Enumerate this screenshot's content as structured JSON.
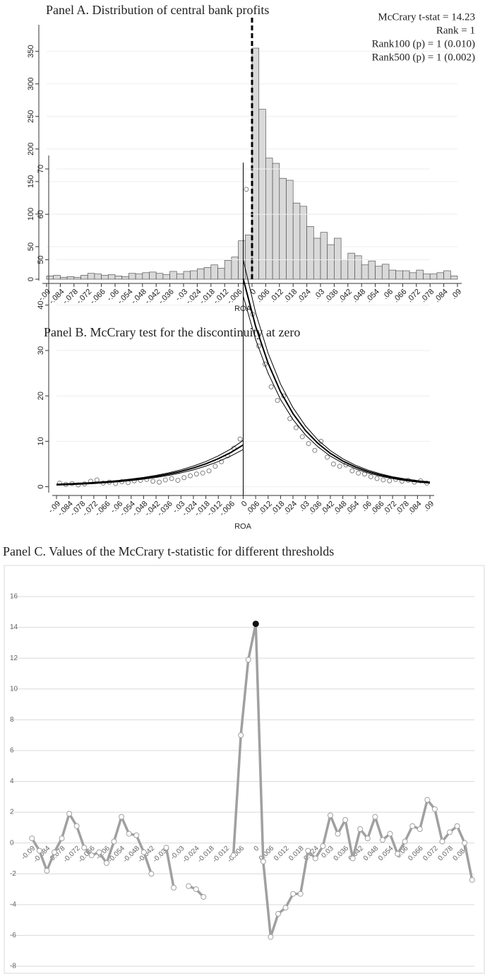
{
  "chart_data": [
    {
      "type": "histogram",
      "title": "Panel A. Distribution of central bank profits",
      "x_label": "ROA",
      "annotations": [
        "McCrary t-stat = 14.23",
        "Rank = 1",
        "Rank100 (p) = 1 (0.010)",
        "Rank500 (p) = 1 (0.002)"
      ],
      "bins": [
        -0.09,
        -0.087,
        -0.084,
        -0.081,
        -0.078,
        -0.075,
        -0.072,
        -0.069,
        -0.066,
        -0.063,
        -0.06,
        -0.057,
        -0.054,
        -0.051,
        -0.048,
        -0.045,
        -0.042,
        -0.039,
        -0.036,
        -0.033,
        -0.03,
        -0.027,
        -0.024,
        -0.021,
        -0.018,
        -0.015,
        -0.012,
        -0.009,
        -0.006,
        -0.003,
        0,
        0.003,
        0.006,
        0.009,
        0.012,
        0.015,
        0.018,
        0.021,
        0.024,
        0.027,
        0.03,
        0.033,
        0.036,
        0.039,
        0.042,
        0.045,
        0.048,
        0.051,
        0.054,
        0.057,
        0.06,
        0.063,
        0.066,
        0.069,
        0.072,
        0.075,
        0.078,
        0.081,
        0.084,
        0.087,
        0.09
      ],
      "values": [
        5,
        6,
        3,
        4,
        3,
        6,
        9,
        8,
        6,
        7,
        5,
        4,
        9,
        8,
        10,
        11,
        9,
        7,
        12,
        8,
        12,
        13,
        16,
        18,
        22,
        17,
        29,
        34,
        59,
        68,
        355,
        261,
        186,
        178,
        155,
        152,
        117,
        112,
        81,
        63,
        72,
        53,
        63,
        30,
        40,
        36,
        22,
        28,
        20,
        23,
        14,
        13,
        13,
        10,
        14,
        8,
        8,
        10,
        13,
        5
      ],
      "color": "#d9d9d9",
      "vline": 0,
      "xlim": [
        -0.09,
        0.09
      ],
      "ylim": [
        0,
        380
      ],
      "xticks": [
        {
          "value": -0.09,
          "label": "-.09"
        },
        {
          "value": -0.084,
          "label": "-.084"
        },
        {
          "value": -0.078,
          "label": "-.078"
        },
        {
          "value": -0.072,
          "label": "-.072"
        },
        {
          "value": -0.066,
          "label": "-.066"
        },
        {
          "value": -0.06,
          "label": "-.06"
        },
        {
          "value": -0.054,
          "label": "-.054"
        },
        {
          "value": -0.048,
          "label": "-.048"
        },
        {
          "value": -0.042,
          "label": "-.042"
        },
        {
          "value": -0.036,
          "label": "-.036"
        },
        {
          "value": -0.03,
          "label": "-.03"
        },
        {
          "value": -0.024,
          "label": "-.024"
        },
        {
          "value": -0.018,
          "label": "-.018"
        },
        {
          "value": -0.012,
          "label": "-.012"
        },
        {
          "value": -0.006,
          "label": "-.006"
        },
        0,
        {
          "value": 0.006,
          "label": ".006"
        },
        {
          "value": 0.012,
          "label": ".012"
        },
        {
          "value": 0.018,
          "label": ".018"
        },
        {
          "value": 0.024,
          "label": ".024"
        },
        {
          "value": 0.03,
          "label": ".03"
        },
        {
          "value": 0.036,
          "label": ".036"
        },
        {
          "value": 0.042,
          "label": ".042"
        },
        {
          "value": 0.048,
          "label": ".048"
        },
        {
          "value": 0.054,
          "label": ".054"
        },
        {
          "value": 0.06,
          "label": ".06"
        },
        {
          "value": 0.066,
          "label": ".066"
        },
        {
          "value": 0.072,
          "label": ".072"
        },
        {
          "value": 0.078,
          "label": ".078"
        },
        {
          "value": 0.084,
          "label": ".084"
        },
        {
          "value": 0.09,
          "label": ".09"
        }
      ],
      "yticks": [
        0,
        50,
        100,
        150,
        200,
        250,
        300,
        350
      ],
      "grid": true
    },
    {
      "type": "scatter",
      "title": "Panel B. McCrary test for the discontinuity at zero",
      "x_label": "ROA",
      "vline": 0,
      "xlim": [
        -0.09,
        0.09
      ],
      "ylim": [
        -1,
        71.4
      ],
      "xticks": [
        {
          "value": -0.09,
          "label": "-.09"
        },
        {
          "value": -0.084,
          "label": "-.084"
        },
        {
          "value": -0.078,
          "label": "-.078"
        },
        {
          "value": -0.072,
          "label": "-.072"
        },
        {
          "value": -0.066,
          "label": "-.066"
        },
        {
          "value": -0.06,
          "label": "-.06"
        },
        {
          "value": -0.054,
          "label": "-.054"
        },
        {
          "value": -0.048,
          "label": "-.048"
        },
        {
          "value": -0.042,
          "label": "-.042"
        },
        {
          "value": -0.036,
          "label": "-.036"
        },
        {
          "value": -0.03,
          "label": "-.03"
        },
        {
          "value": -0.024,
          "label": "-.024"
        },
        {
          "value": -0.018,
          "label": "-.018"
        },
        {
          "value": -0.012,
          "label": "-.012"
        },
        {
          "value": -0.006,
          "label": "-.006"
        },
        0,
        {
          "value": 0.006,
          "label": ".006"
        },
        {
          "value": 0.012,
          "label": ".012"
        },
        {
          "value": 0.018,
          "label": ".018"
        },
        {
          "value": 0.024,
          "label": ".024"
        },
        {
          "value": 0.03,
          "label": ".03"
        },
        {
          "value": 0.036,
          "label": ".036"
        },
        {
          "value": 0.042,
          "label": ".042"
        },
        {
          "value": 0.048,
          "label": ".048"
        },
        {
          "value": 0.054,
          "label": ".054"
        },
        {
          "value": 0.06,
          "label": ".06"
        },
        {
          "value": 0.066,
          "label": ".066"
        },
        {
          "value": 0.072,
          "label": ".072"
        },
        {
          "value": 0.078,
          "label": ".078"
        },
        {
          "value": 0.084,
          "label": ".084"
        },
        {
          "value": 0.09,
          "label": ".09"
        }
      ],
      "yticks": [
        0,
        10,
        20,
        30,
        40,
        50,
        60,
        70
      ],
      "grid": true,
      "series": [
        {
          "kind": "scatter",
          "color": "#808080",
          "x": [
            -0.0885,
            -0.0855,
            -0.0825,
            -0.0795,
            -0.0765,
            -0.0735,
            -0.0705,
            -0.0675,
            -0.0645,
            -0.0615,
            -0.0585,
            -0.0555,
            -0.0525,
            -0.0495,
            -0.0465,
            -0.0435,
            -0.0405,
            -0.0375,
            -0.0345,
            -0.0315,
            -0.0285,
            -0.0255,
            -0.0225,
            -0.0195,
            -0.0165,
            -0.0135,
            -0.0105,
            -0.0075,
            -0.0045,
            -0.0015,
            0.0015,
            0.0045,
            0.0075,
            0.0105,
            0.0135,
            0.0165,
            0.0195,
            0.0225,
            0.0255,
            0.0285,
            0.0315,
            0.0345,
            0.0375,
            0.0405,
            0.0435,
            0.0465,
            0.0495,
            0.0525,
            0.0555,
            0.0585,
            0.0615,
            0.0645,
            0.0675,
            0.0705,
            0.0735,
            0.0765,
            0.0795,
            0.0825,
            0.0855,
            0.0885
          ],
          "values": [
            0.8,
            0.5,
            0.7,
            0.4,
            0.6,
            1.2,
            1.5,
            0.8,
            1.0,
            0.7,
            1.1,
            0.9,
            1.3,
            1.4,
            1.6,
            1.2,
            1.0,
            1.5,
            1.8,
            1.4,
            2.0,
            2.4,
            2.8,
            3.0,
            3.5,
            4.5,
            5.5,
            6.8,
            8.5,
            10.5,
            65.5,
            38,
            31,
            27,
            22,
            19,
            20,
            15,
            13,
            11,
            9.5,
            8,
            10,
            6.5,
            5,
            4.5,
            4.8,
            3.5,
            3,
            2.8,
            2.2,
            1.8,
            1.5,
            1.3,
            1.6,
            1.2,
            1.4,
            1.0,
            1.3,
            0.8
          ]
        },
        {
          "kind": "line",
          "color": "#000000",
          "width": 2,
          "x": [
            -0.09,
            -0.084,
            -0.078,
            -0.072,
            -0.066,
            -0.06,
            -0.054,
            -0.048,
            -0.042,
            -0.036,
            -0.03,
            -0.024,
            -0.018,
            -0.012,
            -0.006,
            0
          ],
          "values": [
            0.46,
            0.56,
            0.68,
            0.83,
            1.02,
            1.24,
            1.52,
            1.86,
            2.27,
            2.77,
            3.38,
            4.13,
            5.05,
            6.17,
            7.53,
            9.2
          ]
        },
        {
          "kind": "line",
          "color": "#000000",
          "width": 1,
          "x": [
            -0.09,
            -0.084,
            -0.078,
            -0.072,
            -0.066,
            -0.06,
            -0.054,
            -0.048,
            -0.042,
            -0.036,
            -0.03,
            -0.024,
            -0.018,
            -0.012,
            -0.006,
            0
          ],
          "values": [
            0.6,
            0.7,
            0.82,
            0.98,
            1.17,
            1.4,
            1.7,
            2.05,
            2.5,
            3.05,
            3.72,
            4.55,
            5.55,
            6.8,
            8.3,
            10.2
          ]
        },
        {
          "kind": "line",
          "color": "#000000",
          "width": 1,
          "x": [
            -0.09,
            -0.084,
            -0.078,
            -0.072,
            -0.066,
            -0.06,
            -0.054,
            -0.048,
            -0.042,
            -0.036,
            -0.03,
            -0.024,
            -0.018,
            -0.012,
            -0.006,
            0
          ],
          "values": [
            0.32,
            0.42,
            0.54,
            0.68,
            0.87,
            1.08,
            1.34,
            1.67,
            2.04,
            2.49,
            3.04,
            3.71,
            4.55,
            5.55,
            6.76,
            8.2
          ]
        },
        {
          "kind": "line",
          "color": "#000000",
          "width": 2,
          "x": [
            0,
            0.006,
            0.012,
            0.018,
            0.024,
            0.03,
            0.036,
            0.042,
            0.048,
            0.054,
            0.06,
            0.066,
            0.072,
            0.078,
            0.084,
            0.09
          ],
          "values": [
            45.8,
            35.3,
            27.2,
            20.9,
            16.1,
            12.4,
            9.55,
            7.35,
            5.66,
            4.36,
            3.36,
            2.59,
            1.99,
            1.53,
            1.18,
            0.91
          ]
        },
        {
          "kind": "line",
          "color": "#000000",
          "width": 1,
          "x": [
            0,
            0.006,
            0.012,
            0.018,
            0.024,
            0.03,
            0.036,
            0.042,
            0.048,
            0.054,
            0.06,
            0.066,
            0.072,
            0.078,
            0.084,
            0.09
          ],
          "values": [
            50,
            38.3,
            29.4,
            22.6,
            17.4,
            13.4,
            10.3,
            7.95,
            6.15,
            4.75,
            3.68,
            2.85,
            2.2,
            1.72,
            1.35,
            1.06
          ]
        },
        {
          "kind": "line",
          "color": "#000000",
          "width": 1,
          "x": [
            0,
            0.006,
            0.012,
            0.018,
            0.024,
            0.03,
            0.036,
            0.042,
            0.048,
            0.054,
            0.06,
            0.066,
            0.072,
            0.078,
            0.084,
            0.09
          ],
          "values": [
            42,
            32.4,
            25,
            19.2,
            14.8,
            11.4,
            8.8,
            6.75,
            5.18,
            3.97,
            3.04,
            2.33,
            1.78,
            1.34,
            1.01,
            0.76
          ]
        }
      ]
    },
    {
      "type": "line",
      "title": "Panel C. Values of the McCrary t-statistic for different thresholds",
      "categories": [
        "-0.09",
        null,
        "-0.084",
        null,
        "-0.078",
        null,
        "-0.072",
        null,
        "-0.066",
        null,
        "-0.06",
        null,
        "-0.054",
        null,
        "-0.048",
        null,
        "-0.042",
        null,
        "-0.036",
        null,
        "-0.03",
        null,
        "-0.024",
        null,
        "-0.018",
        null,
        "-0.012",
        null,
        "-0.006",
        null,
        "0",
        null,
        "0.006",
        null,
        "0.012",
        null,
        "0.018",
        null,
        "0.024",
        null,
        "0.03",
        null,
        "0.036",
        null,
        "0.042",
        null,
        "0.048",
        null,
        "0.054",
        null,
        "0.06",
        null,
        "0.066",
        null,
        "0.072",
        null,
        "0.078",
        null,
        "0.084",
        null
      ],
      "values": [
        0.3,
        -0.5,
        -1.8,
        -0.6,
        0.3,
        1.9,
        1.1,
        -0.3,
        -0.8,
        -0.6,
        -1.3,
        0.1,
        1.7,
        0.6,
        0.5,
        -0.6,
        -2.0,
        null,
        -0.3,
        -2.9,
        null,
        -2.8,
        -3.0,
        -3.5,
        null,
        null,
        null,
        -0.8,
        7.0,
        11.9,
        14.23,
        -1.2,
        -6.1,
        -4.6,
        -4.2,
        -3.3,
        -3.3,
        -0.5,
        -1.0,
        -0.2,
        1.8,
        0.6,
        1.5,
        -1.0,
        0.9,
        0.3,
        1.7,
        0.2,
        0.6,
        -0.7,
        0.1,
        1.1,
        0.9,
        2.8,
        2.2,
        0.1,
        0.7,
        1.1,
        0.0,
        -2.4
      ],
      "color": "#a0a0a0",
      "highlight": 30,
      "ylim": [
        -8,
        16
      ],
      "yticks": [
        -8,
        -6,
        -4,
        -2,
        0,
        2,
        4,
        6,
        8,
        10,
        12,
        14,
        16
      ],
      "grid": true
    }
  ]
}
